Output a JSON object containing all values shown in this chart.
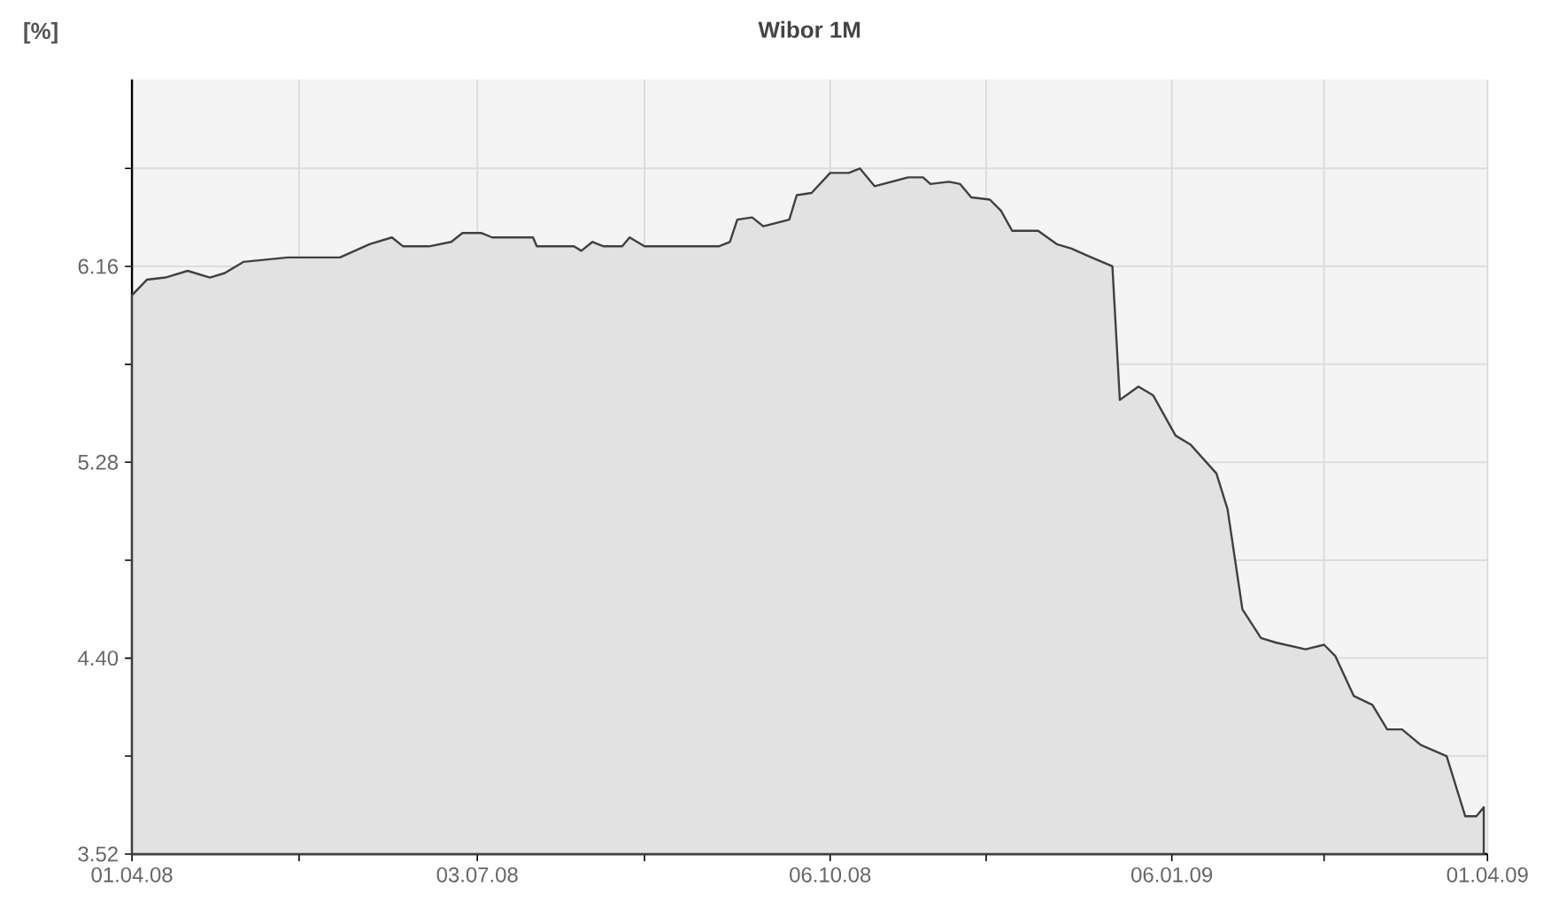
{
  "chart_data": {
    "type": "area",
    "title": "Wibor 1M",
    "ylabel": "[%]",
    "x": [
      "2008-04-01",
      "2008-04-05",
      "2008-04-10",
      "2008-04-16",
      "2008-04-22",
      "2008-04-26",
      "2008-05-01",
      "2008-05-13",
      "2008-05-27",
      "2008-06-04",
      "2008-06-10",
      "2008-06-13",
      "2008-06-20",
      "2008-06-26",
      "2008-06-29",
      "2008-07-04",
      "2008-07-07",
      "2008-07-18",
      "2008-07-19",
      "2008-07-29",
      "2008-07-31",
      "2008-08-03",
      "2008-08-06",
      "2008-08-11",
      "2008-08-13",
      "2008-08-17",
      "2008-09-06",
      "2008-09-09",
      "2008-09-11",
      "2008-09-15",
      "2008-09-18",
      "2008-09-25",
      "2008-09-27",
      "2008-10-01",
      "2008-10-06",
      "2008-10-11",
      "2008-10-14",
      "2008-10-18",
      "2008-10-27",
      "2008-10-31",
      "2008-11-02",
      "2008-11-07",
      "2008-11-10",
      "2008-11-13",
      "2008-11-18",
      "2008-11-21",
      "2008-11-24",
      "2008-12-01",
      "2008-12-06",
      "2008-12-10",
      "2008-12-14",
      "2008-12-21",
      "2008-12-23",
      "2008-12-28",
      "2009-01-01",
      "2009-01-07",
      "2009-01-11",
      "2009-01-18",
      "2009-01-21",
      "2009-01-25",
      "2009-01-30",
      "2009-02-03",
      "2009-02-11",
      "2009-02-16",
      "2009-02-19",
      "2009-02-24",
      "2009-03-01",
      "2009-03-05",
      "2009-03-09",
      "2009-03-14",
      "2009-03-21",
      "2009-03-26",
      "2009-03-29",
      "2009-03-31"
    ],
    "series": [
      {
        "color": "#404040",
        "values": [
          6.03,
          6.1,
          6.11,
          6.14,
          6.11,
          6.13,
          6.18,
          6.2,
          6.2,
          6.26,
          6.29,
          6.25,
          6.25,
          6.27,
          6.31,
          6.31,
          6.29,
          6.29,
          6.25,
          6.25,
          6.23,
          6.27,
          6.25,
          6.25,
          6.29,
          6.25,
          6.25,
          6.27,
          6.37,
          6.38,
          6.34,
          6.37,
          6.48,
          6.49,
          6.58,
          6.58,
          6.6,
          6.52,
          6.56,
          6.56,
          6.53,
          6.54,
          6.53,
          6.47,
          6.46,
          6.41,
          6.32,
          6.32,
          6.26,
          6.24,
          6.21,
          6.16,
          5.56,
          5.62,
          5.58,
          5.4,
          5.36,
          5.23,
          5.07,
          4.62,
          4.49,
          4.47,
          4.44,
          4.46,
          4.41,
          4.23,
          4.19,
          4.08,
          4.08,
          4.01,
          3.96,
          3.69,
          3.69,
          3.73
        ]
      }
    ],
    "xlim": [
      "2008-04-01",
      "2009-04-01"
    ],
    "xticks": [
      {
        "value": "2008-04-01",
        "label": "01.04.08"
      },
      {
        "value": "2008-05-16",
        "label": null
      },
      {
        "value": "2008-07-03",
        "label": "03.07.08"
      },
      {
        "value": "2008-08-17",
        "label": null
      },
      {
        "value": "2008-10-06",
        "label": "06.10.08"
      },
      {
        "value": "2008-11-17",
        "label": null
      },
      {
        "value": "2009-01-06",
        "label": "06.01.09"
      },
      {
        "value": "2009-02-16",
        "label": null
      },
      {
        "value": "2009-04-01",
        "label": "01.04.09"
      }
    ],
    "ylim": [
      3.52,
      7.0
    ],
    "yticks": [
      3.52,
      {
        "value": 3.96,
        "label": null
      },
      {
        "value": 4.4,
        "label": "4.40"
      },
      {
        "value": 4.84,
        "label": null
      },
      5.28,
      {
        "value": 5.72,
        "label": null
      },
      6.16,
      {
        "value": 6.6,
        "label": null
      }
    ],
    "grid": true
  }
}
